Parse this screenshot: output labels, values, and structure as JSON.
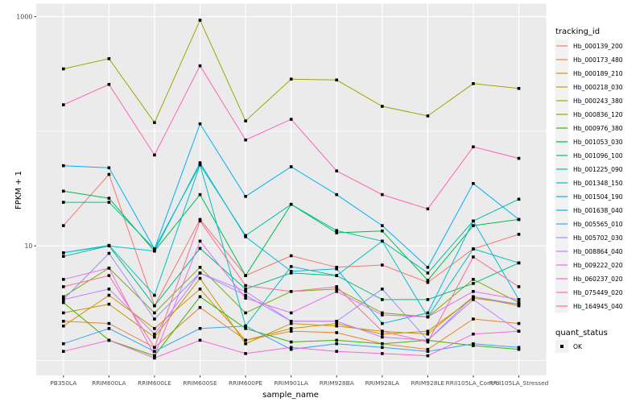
{
  "figure": {
    "background": "#FFFFFF",
    "panel_background": "#EBEBEB",
    "grid_color": "#FFFFFF",
    "axis_text_color": "#4D4D4D",
    "tick_mark_color": "#333333",
    "point_color": "#000000",
    "legend_key_background": "#F2F2F2"
  },
  "x_axis": {
    "title": "sample_name"
  },
  "y_axis": {
    "title": "FPKM + 1",
    "ticks": [
      {
        "label": "1000",
        "value": 1000
      },
      {
        "label": "10",
        "value": 10
      }
    ],
    "minor_gridlines": [
      1,
      100
    ]
  },
  "legend": {
    "tracking_title": "tracking_id",
    "quant_title": "quant_status",
    "quant_entries": [
      {
        "label": "OK",
        "marker": "black-square"
      }
    ]
  },
  "chart_data": {
    "type": "line",
    "x_type": "categorical",
    "y_scale": "log10",
    "ylim": [
      0.7,
      1250
    ],
    "grid": "on",
    "legend_position": "right",
    "title": "",
    "xlabel": "sample_name",
    "ylabel": "FPKM + 1",
    "point_marker": "small black square on every data point (quant_status = OK)",
    "categories": [
      "PB350LA",
      "RRIM600LA",
      "RRIM600LE",
      "RRIM600SE",
      "RRIM600PE",
      "RRIM901LA",
      "RRIM928BA",
      "RRIM928LA",
      "RRIM928LE",
      "RRII105LA_Control",
      "RRII105LA_Stressed"
    ],
    "series": [
      {
        "name": "Hb_000139_200",
        "color": "#F8766D",
        "values": [
          15,
          42,
          3,
          17,
          5.5,
          8.2,
          6.5,
          6.8,
          4.8,
          9.4,
          12.6
        ]
      },
      {
        "name": "Hb_000173_480",
        "color": "#EA8331",
        "values": [
          2.2,
          2.1,
          1.3,
          2.9,
          1.5,
          1.8,
          1.75,
          1.4,
          1.25,
          2.3,
          2.1
        ]
      },
      {
        "name": "Hb_000189_210",
        "color": "#D89000",
        "values": [
          2.0,
          3.7,
          1.9,
          4.2,
          1.5,
          1.9,
          2.1,
          1.7,
          1.8,
          3.5,
          3.1
        ]
      },
      {
        "name": "Hb_000218_030",
        "color": "#C09B00",
        "values": [
          2.6,
          3.1,
          1.6,
          5.2,
          1.4,
          2.1,
          2.0,
          1.8,
          1.7,
          3.6,
          3.0
        ]
      },
      {
        "name": "Hb_000243_380",
        "color": "#A3A500",
        "values": [
          350,
          430,
          119,
          930,
          123,
          285,
          280,
          165,
          136,
          260,
          236
        ]
      },
      {
        "name": "Hb_000836_120",
        "color": "#7CAE00",
        "values": [
          3.6,
          6.4,
          2.6,
          6.5,
          2.6,
          4.0,
          4.2,
          2.6,
          2.4,
          5.1,
          3.2
        ]
      },
      {
        "name": "Hb_000976_380",
        "color": "#39B600",
        "values": [
          3.2,
          1.5,
          1.1,
          3.6,
          1.9,
          1.45,
          1.5,
          1.4,
          1.5,
          1.35,
          1.25
        ]
      },
      {
        "name": "Hb_001053_030",
        "color": "#00BB4E",
        "values": [
          30,
          26,
          9.0,
          28,
          5.5,
          23,
          13,
          13.5,
          5.0,
          15,
          17
        ]
      },
      {
        "name": "Hb_001096_100",
        "color": "#00BF7D",
        "values": [
          8.1,
          10,
          3.0,
          9.5,
          4.2,
          5.8,
          5.5,
          3.4,
          3.4,
          4.7,
          7.1
        ]
      },
      {
        "name": "Hb_001225_090",
        "color": "#00C1A3",
        "values": [
          24,
          24,
          9.4,
          51,
          12.3,
          23,
          13.6,
          11,
          5.8,
          16.5,
          25.5
        ]
      },
      {
        "name": "Hb_001348_150",
        "color": "#00BFC4",
        "values": [
          8.7,
          10.1,
          3.7,
          51,
          2.0,
          6.6,
          5.5,
          11,
          2.4,
          9.4,
          7.1
        ]
      },
      {
        "name": "Hb_001504_190",
        "color": "#00BAE0",
        "values": [
          8.7,
          10,
          9.0,
          53,
          12,
          6.0,
          6.3,
          2.1,
          2.6,
          16.5,
          3.4
        ]
      },
      {
        "name": "Hb_001638_040",
        "color": "#00B0F6",
        "values": [
          50,
          48,
          9.4,
          116,
          27,
          49,
          28,
          15,
          6.5,
          35,
          17
        ]
      },
      {
        "name": "Hb_005565_010",
        "color": "#35A2FF",
        "values": [
          1.4,
          1.9,
          1.2,
          1.9,
          2.0,
          1.25,
          1.4,
          1.3,
          1.2,
          1.4,
          1.3
        ]
      },
      {
        "name": "Hb_005702_030",
        "color": "#9590FF",
        "values": [
          3.4,
          8.6,
          2.3,
          5.8,
          3.7,
          2.2,
          2.2,
          4.2,
          1.5,
          3.6,
          3.1
        ]
      },
      {
        "name": "Hb_008864_040",
        "color": "#C77CFF",
        "values": [
          3.4,
          4.2,
          1.7,
          5.8,
          4.0,
          2.2,
          2.2,
          1.6,
          1.5,
          3.4,
          1.8
        ]
      },
      {
        "name": "Hb_009222_020",
        "color": "#E76BF3",
        "values": [
          5.1,
          6.4,
          1.1,
          11,
          3.5,
          2.6,
          4.0,
          2.5,
          2.4,
          4.0,
          3.4
        ]
      },
      {
        "name": "Hb_060237_020",
        "color": "#FA62DB",
        "values": [
          1.2,
          1.5,
          1.05,
          1.5,
          1.15,
          1.3,
          1.2,
          1.15,
          1.1,
          1.7,
          1.8
        ]
      },
      {
        "name": "Hb_075449_020",
        "color": "#FF62BC",
        "values": [
          170,
          256,
          62,
          372,
          84,
          127,
          45,
          28,
          21,
          73,
          58
        ]
      },
      {
        "name": "Hb_164945_040",
        "color": "#FF6A98",
        "values": [
          4.4,
          5.5,
          1.3,
          16.5,
          4.5,
          4.0,
          4.4,
          1.8,
          1.45,
          8.0,
          4.4
        ]
      }
    ]
  }
}
